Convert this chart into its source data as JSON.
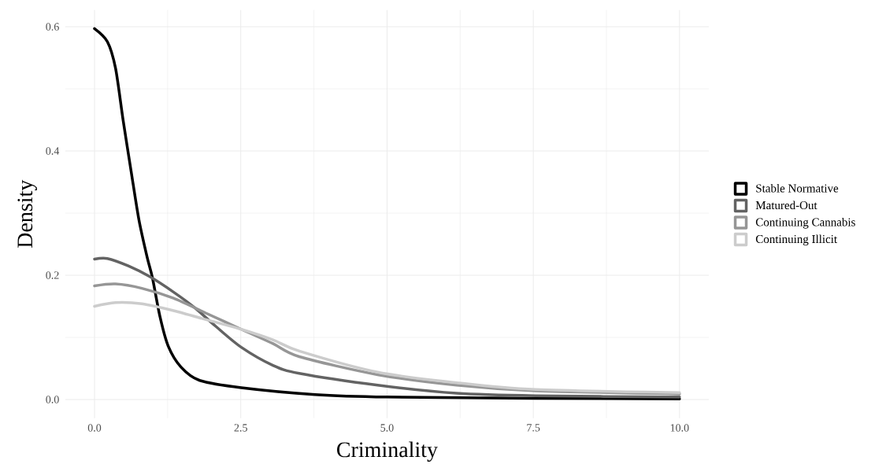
{
  "chart_data": {
    "type": "line",
    "xlabel": "Criminality",
    "ylabel": "Density",
    "xlim": [
      -0.5,
      10.5
    ],
    "ylim": [
      -0.03,
      0.627
    ],
    "xticks": [
      {
        "value": 0,
        "label": "0.0"
      },
      {
        "value": 2.5,
        "label": "2.5"
      },
      {
        "value": 5,
        "label": "5.0"
      },
      {
        "value": 7.5,
        "label": "7.5"
      },
      {
        "value": 10,
        "label": "10.0"
      }
    ],
    "yticks": [
      {
        "value": 0,
        "label": "0.0"
      },
      {
        "value": 0.2,
        "label": "0.2"
      },
      {
        "value": 0.4,
        "label": "0.4"
      },
      {
        "value": 0.6,
        "label": "0.6"
      }
    ],
    "grid": true,
    "legend": "right",
    "series": [
      {
        "name": "Stable Normative",
        "color": "#000000",
        "x": [
          0,
          0.22,
          0.36,
          0.49,
          0.63,
          0.76,
          0.9,
          0.99,
          1.12,
          1.26,
          1.48,
          1.79,
          2.51,
          3.77,
          5,
          7.5,
          10
        ],
        "values": [
          0.597,
          0.576,
          0.533,
          0.449,
          0.365,
          0.289,
          0.229,
          0.196,
          0.133,
          0.086,
          0.052,
          0.031,
          0.019,
          0.008,
          0.004,
          0.002,
          0.001
        ]
      },
      {
        "name": "Matured-Out",
        "color": "#636363",
        "x": [
          0,
          0.22,
          0.58,
          0.94,
          1.35,
          1.71,
          2.07,
          2.51,
          3.05,
          3.5,
          4.84,
          6.19,
          7.54,
          10
        ],
        "values": [
          0.226,
          0.227,
          0.215,
          0.198,
          0.173,
          0.148,
          0.118,
          0.084,
          0.055,
          0.042,
          0.023,
          0.01,
          0.006,
          0.004
        ]
      },
      {
        "name": "Continuing Cannabis",
        "color": "#969696",
        "x": [
          0,
          0.36,
          0.81,
          1.35,
          1.93,
          2.51,
          3.05,
          3.5,
          4.84,
          6.19,
          7.54,
          10
        ],
        "values": [
          0.183,
          0.186,
          0.179,
          0.163,
          0.138,
          0.113,
          0.09,
          0.069,
          0.04,
          0.023,
          0.014,
          0.009
        ]
      },
      {
        "name": "Continuing Illicit",
        "color": "#cccccc",
        "x": [
          0,
          0.36,
          0.81,
          1.35,
          1.93,
          2.51,
          3.05,
          3.5,
          4.84,
          6.19,
          7.54,
          10
        ],
        "values": [
          0.15,
          0.156,
          0.154,
          0.143,
          0.128,
          0.113,
          0.096,
          0.078,
          0.044,
          0.027,
          0.016,
          0.011
        ]
      }
    ]
  }
}
